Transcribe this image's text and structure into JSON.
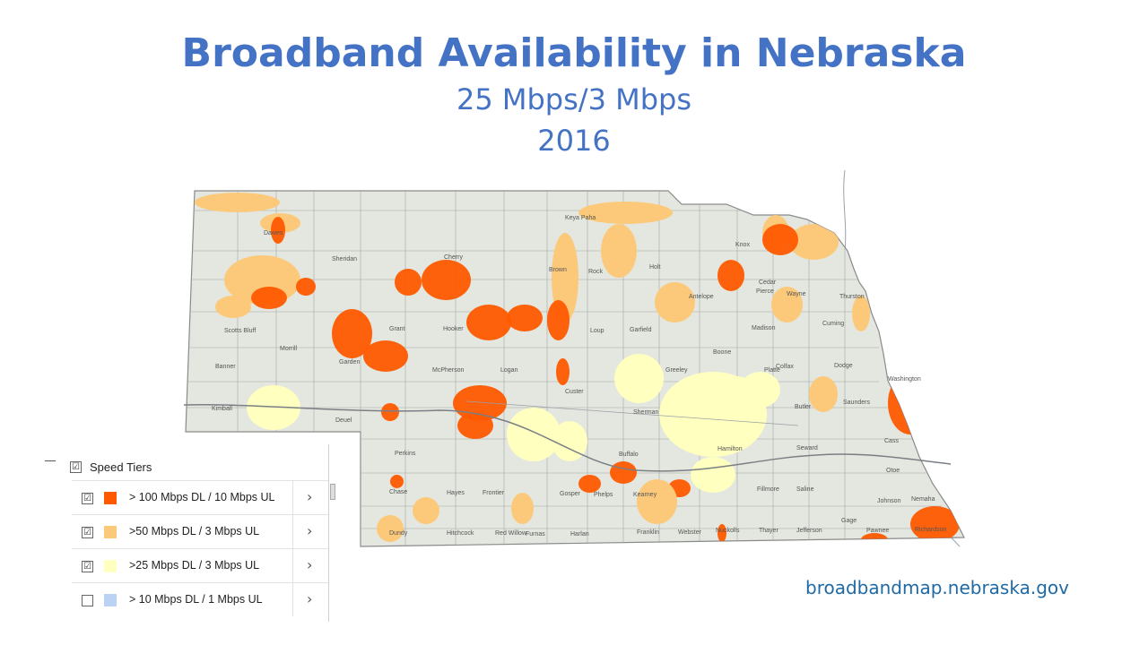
{
  "title": {
    "line1": "Broadband Availability in Nebraska",
    "line2": "25 Mbps/3 Mbps",
    "line3": "2016"
  },
  "colors": {
    "tier100": "#ff5a00",
    "tier50": "#fcc97a",
    "tier25": "#ffffc0",
    "tier10": "#bcd2f5",
    "land": "#e3e7df",
    "county_border": "#a5a5a5",
    "title": "#4472c4",
    "url": "#1f6aa5"
  },
  "legend": {
    "title": "Speed Tiers",
    "header_checked": "☑",
    "items": [
      {
        "label": "> 100 Mbps DL / 10 Mbps UL",
        "checked": "☑",
        "color": "#ff5a00"
      },
      {
        "label": ">50 Mbps DL / 3 Mbps UL",
        "checked": "☑",
        "color": "#fcc97a"
      },
      {
        "label": ">25 Mbps DL / 3 Mbps UL",
        "checked": "☑",
        "color": "#ffffc0"
      },
      {
        "label": "> 10 Mbps DL / 1 Mbps UL",
        "checked": "",
        "color": "#bcd2f5"
      }
    ]
  },
  "counties": [
    "Keya Paha",
    "Knox",
    "Sheridan",
    "Cherry",
    "Brown",
    "Rock",
    "Holt",
    "Dawes",
    "Cedar",
    "Antelope",
    "Pierce",
    "Wayne",
    "Thurston",
    "Madison",
    "Cuming",
    "Grant",
    "Hooker",
    "Garfield",
    "Loup",
    "Scotts Bluff",
    "Morrill",
    "Garden",
    "Banner",
    "McPherson",
    "Logan",
    "Boone",
    "Platte",
    "Colfax",
    "Dodge",
    "Greeley",
    "Custer",
    "Kimball",
    "Washington",
    "Butler",
    "Saunders",
    "Sherman",
    "Deuel",
    "Perkins",
    "Buffalo",
    "Hamilton",
    "Seward",
    "Cass",
    "Chase",
    "Hayes",
    "Frontier",
    "Gosper",
    "Phelps",
    "Kearney",
    "Fillmore",
    "Saline",
    "Otoe",
    "Johnson",
    "Nemaha",
    "Dundy",
    "Hitchcock",
    "Red Willow",
    "Furnas",
    "Harlan",
    "Franklin",
    "Webster",
    "Nuckolls",
    "Thayer",
    "Jefferson",
    "Gage",
    "Pawnee",
    "Richardson"
  ],
  "url": "broadbandmap.nebraska.gov"
}
